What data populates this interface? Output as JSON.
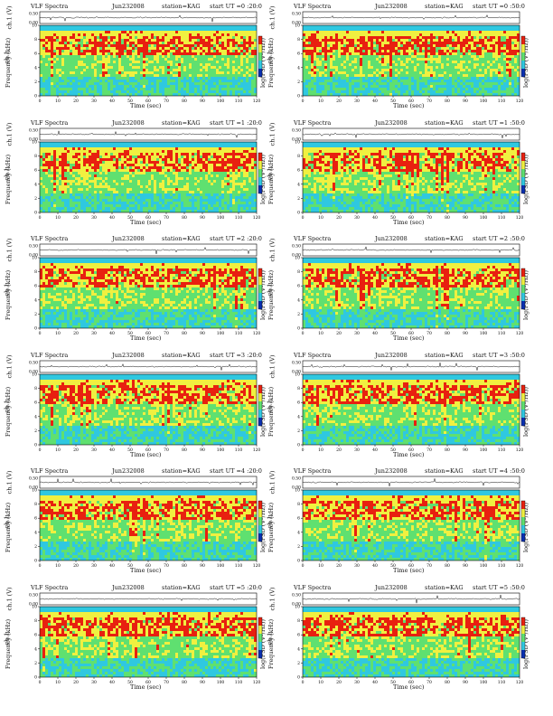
{
  "chart_data": [
    {
      "type": "heatmap",
      "header_left": "VLF Spectra",
      "header_date": "Jun232008",
      "header_station": "station=KAG",
      "header_start": "start UT =0 :20:0",
      "ylabel_top": "ch.1 (V)",
      "ylabel_main": "Frequency (kHz)",
      "ylabel_channel": "ch.1",
      "colorbar_label": "log(PSD (V²/Hz))",
      "xlabel": "Time (sec)",
      "x_ticks": [
        "0",
        "10",
        "20",
        "30",
        "40",
        "50",
        "60",
        "70",
        "80",
        "90",
        "100",
        "110",
        "120"
      ],
      "y_ticks": [
        "0",
        "2",
        "4",
        "6",
        "8",
        "10"
      ],
      "top_ticks": [
        "0.00",
        "0.50"
      ],
      "xlim": [
        0,
        120
      ],
      "ylim": [
        0,
        10
      ]
    },
    {
      "type": "heatmap",
      "header_left": "VLF Spectra",
      "header_date": "Jun232008",
      "header_station": "station=KAG",
      "header_start": "start UT =0 :50:0",
      "ylabel_top": "ch.1 (V)",
      "ylabel_main": "Frequency (kHz)",
      "ylabel_channel": "ch.1",
      "colorbar_label": "log(PSD (V²/Hz))",
      "xlabel": "Time (sec)",
      "x_ticks": [
        "0",
        "10",
        "20",
        "30",
        "40",
        "50",
        "60",
        "70",
        "80",
        "90",
        "100",
        "110",
        "120"
      ],
      "y_ticks": [
        "0",
        "2",
        "4",
        "6",
        "8",
        "10"
      ],
      "top_ticks": [
        "0.00",
        "0.50"
      ],
      "xlim": [
        0,
        120
      ],
      "ylim": [
        0,
        10
      ]
    },
    {
      "type": "heatmap",
      "header_left": "VLF Spectra",
      "header_date": "Jun232008",
      "header_station": "station=KAG",
      "header_start": "start UT =1 :20:0",
      "ylabel_top": "ch.1 (V)",
      "ylabel_main": "Frequency (kHz)",
      "ylabel_channel": "ch.1",
      "colorbar_label": "log(PSD (V²/Hz))",
      "xlabel": "Time (sec)",
      "x_ticks": [
        "0",
        "10",
        "20",
        "30",
        "40",
        "50",
        "60",
        "70",
        "80",
        "90",
        "100",
        "110",
        "120"
      ],
      "y_ticks": [
        "0",
        "2",
        "4",
        "6",
        "8",
        "10"
      ],
      "top_ticks": [
        "0.00",
        "0.50"
      ],
      "xlim": [
        0,
        120
      ],
      "ylim": [
        0,
        10
      ]
    },
    {
      "type": "heatmap",
      "header_left": "VLF Spectra",
      "header_date": "Jun232008",
      "header_station": "station=KAG",
      "header_start": "start UT =1 :50:0",
      "ylabel_top": "ch.1 (V)",
      "ylabel_main": "Frequency (kHz)",
      "ylabel_channel": "ch.1",
      "colorbar_label": "log(PSD (V²/Hz))",
      "xlabel": "Time (sec)",
      "x_ticks": [
        "0",
        "10",
        "20",
        "30",
        "40",
        "50",
        "60",
        "70",
        "80",
        "90",
        "100",
        "110",
        "120"
      ],
      "y_ticks": [
        "0",
        "2",
        "4",
        "6",
        "8",
        "10"
      ],
      "top_ticks": [
        "0.00",
        "0.50"
      ],
      "xlim": [
        0,
        120
      ],
      "ylim": [
        0,
        10
      ]
    },
    {
      "type": "heatmap",
      "header_left": "VLF Spectra",
      "header_date": "Jun232008",
      "header_station": "station=KAG",
      "header_start": "start UT =2 :20:0",
      "ylabel_top": "ch.1 (V)",
      "ylabel_main": "Frequency (kHz)",
      "ylabel_channel": "ch.1",
      "colorbar_label": "log(PSD (V²/Hz))",
      "xlabel": "Time (sec)",
      "x_ticks": [
        "0",
        "10",
        "20",
        "30",
        "40",
        "50",
        "60",
        "70",
        "80",
        "90",
        "100",
        "110",
        "120"
      ],
      "y_ticks": [
        "0",
        "2",
        "4",
        "6",
        "8",
        "10"
      ],
      "top_ticks": [
        "0.00",
        "0.50"
      ],
      "xlim": [
        0,
        120
      ],
      "ylim": [
        0,
        10
      ]
    },
    {
      "type": "heatmap",
      "header_left": "VLF Spectra",
      "header_date": "Jun232008",
      "header_station": "station=KAG",
      "header_start": "start UT =2 :50:0",
      "ylabel_top": "ch.1 (V)",
      "ylabel_main": "Frequency (kHz)",
      "ylabel_channel": "ch.1",
      "colorbar_label": "log(PSD (V²/Hz))",
      "xlabel": "Time (sec)",
      "x_ticks": [
        "0",
        "10",
        "20",
        "30",
        "40",
        "50",
        "60",
        "70",
        "80",
        "90",
        "100",
        "110",
        "120"
      ],
      "y_ticks": [
        "0",
        "2",
        "4",
        "6",
        "8",
        "10"
      ],
      "top_ticks": [
        "0.00",
        "0.50"
      ],
      "xlim": [
        0,
        120
      ],
      "ylim": [
        0,
        10
      ]
    },
    {
      "type": "heatmap",
      "header_left": "VLF Spectra",
      "header_date": "Jun232008",
      "header_station": "station=KAG",
      "header_start": "start UT =3 :20:0",
      "ylabel_top": "ch.1 (V)",
      "ylabel_main": "Frequency (kHz)",
      "ylabel_channel": "ch.1",
      "colorbar_label": "log(PSD (V²/Hz))",
      "xlabel": "Time (sec)",
      "x_ticks": [
        "0",
        "10",
        "20",
        "30",
        "40",
        "50",
        "60",
        "70",
        "80",
        "90",
        "100",
        "110",
        "120"
      ],
      "y_ticks": [
        "0",
        "2",
        "4",
        "6",
        "8",
        "10"
      ],
      "top_ticks": [
        "0.00",
        "0.50"
      ],
      "xlim": [
        0,
        120
      ],
      "ylim": [
        0,
        10
      ]
    },
    {
      "type": "heatmap",
      "header_left": "VLF Spectra",
      "header_date": "Jun232008",
      "header_station": "station=KAG",
      "header_start": "start UT =3 :50:0",
      "ylabel_top": "ch.1 (V)",
      "ylabel_main": "Frequency (kHz)",
      "ylabel_channel": "ch.1",
      "colorbar_label": "log(PSD (V²/Hz))",
      "xlabel": "Time (sec)",
      "x_ticks": [
        "0",
        "10",
        "20",
        "30",
        "40",
        "50",
        "60",
        "70",
        "80",
        "90",
        "100",
        "110",
        "120"
      ],
      "y_ticks": [
        "0",
        "2",
        "4",
        "6",
        "8",
        "10"
      ],
      "top_ticks": [
        "0.00",
        "0.50"
      ],
      "xlim": [
        0,
        120
      ],
      "ylim": [
        0,
        10
      ]
    },
    {
      "type": "heatmap",
      "header_left": "VLF Spectra",
      "header_date": "Jun232008",
      "header_station": "station=KAG",
      "header_start": "start UT =4 :20:0",
      "ylabel_top": "ch.1 (V)",
      "ylabel_main": "Frequency (kHz)",
      "ylabel_channel": "ch.1",
      "colorbar_label": "log(PSD (V²/Hz))",
      "xlabel": "Time (sec)",
      "x_ticks": [
        "0",
        "10",
        "20",
        "30",
        "40",
        "50",
        "60",
        "70",
        "80",
        "90",
        "100",
        "110",
        "120"
      ],
      "y_ticks": [
        "0",
        "2",
        "4",
        "6",
        "8",
        "10"
      ],
      "top_ticks": [
        "0.00",
        "0.50"
      ],
      "xlim": [
        0,
        120
      ],
      "ylim": [
        0,
        10
      ]
    },
    {
      "type": "heatmap",
      "header_left": "VLF Spectra",
      "header_date": "Jun232008",
      "header_station": "station=KAG",
      "header_start": "start UT =4 :50:0",
      "ylabel_top": "ch.1 (V)",
      "ylabel_main": "Frequency (kHz)",
      "ylabel_channel": "ch.1",
      "colorbar_label": "log(PSD (V²/Hz))",
      "xlabel": "Time (sec)",
      "x_ticks": [
        "0",
        "10",
        "20",
        "30",
        "40",
        "50",
        "60",
        "70",
        "80",
        "90",
        "100",
        "110",
        "120"
      ],
      "y_ticks": [
        "0",
        "2",
        "4",
        "6",
        "8",
        "10"
      ],
      "top_ticks": [
        "0.00",
        "0.50"
      ],
      "xlim": [
        0,
        120
      ],
      "ylim": [
        0,
        10
      ]
    },
    {
      "type": "heatmap",
      "header_left": "VLF Spectra",
      "header_date": "Jun232008",
      "header_station": "station=KAG",
      "header_start": "start UT =5 :20:0",
      "ylabel_top": "ch.1 (V)",
      "ylabel_main": "Frequency (kHz)",
      "ylabel_channel": "ch.1",
      "colorbar_label": "log(PSD (V²/Hz))",
      "xlabel": "Time (sec)",
      "x_ticks": [
        "0",
        "10",
        "20",
        "30",
        "40",
        "50",
        "60",
        "70",
        "80",
        "90",
        "100",
        "110",
        "120"
      ],
      "y_ticks": [
        "0",
        "2",
        "4",
        "6",
        "8",
        "10"
      ],
      "top_ticks": [
        "0.00",
        "0.50"
      ],
      "xlim": [
        0,
        120
      ],
      "ylim": [
        0,
        10
      ]
    },
    {
      "type": "heatmap",
      "header_left": "VLF Spectra",
      "header_date": "Jun232008",
      "header_station": "station=KAG",
      "header_start": "start UT =5 :50:0",
      "ylabel_top": "ch.1 (V)",
      "ylabel_main": "Frequency (kHz)",
      "ylabel_channel": "ch.1",
      "colorbar_label": "log(PSD (V²/Hz))",
      "xlabel": "Time (sec)",
      "x_ticks": [
        "0",
        "10",
        "20",
        "30",
        "40",
        "50",
        "60",
        "70",
        "80",
        "90",
        "100",
        "110",
        "120"
      ],
      "y_ticks": [
        "0",
        "2",
        "4",
        "6",
        "8",
        "10"
      ],
      "top_ticks": [
        "0.00",
        "0.50"
      ],
      "xlim": [
        0,
        120
      ],
      "ylim": [
        0,
        10
      ]
    }
  ],
  "colors": {
    "low": "#0a2fb0",
    "mid_low": "#2fc8e0",
    "mid": "#5fe070",
    "mid_high": "#f0f040",
    "high": "#e82010",
    "top_band": "#30c8e8"
  }
}
